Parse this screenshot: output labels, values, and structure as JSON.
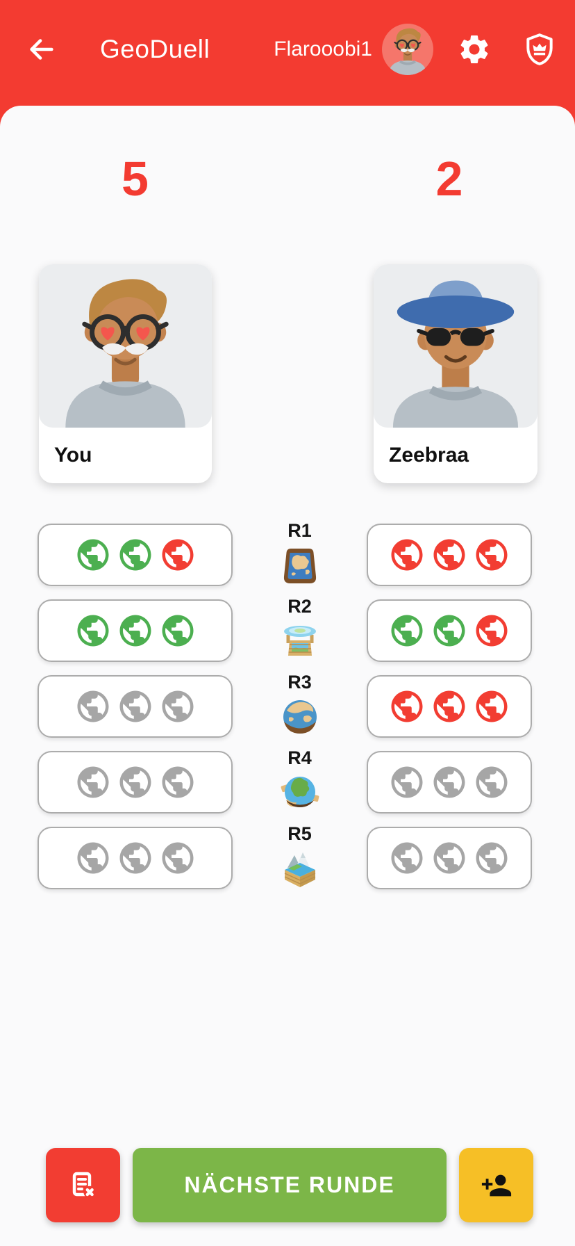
{
  "app": {
    "title": "GeoDuell",
    "username": "Flarooobi1"
  },
  "scoreboard": {
    "left_score": "5",
    "right_score": "2"
  },
  "players": {
    "left_name": "You",
    "right_name": "Zeebraa"
  },
  "rounds": {
    "labels": [
      "R1",
      "R2",
      "R3",
      "R4",
      "R5"
    ],
    "icons": [
      "europe-map-tray",
      "flat-earth-crate",
      "hemisphere-globe",
      "continent-globe",
      "landscape-box"
    ],
    "left_results": [
      [
        "correct",
        "correct",
        "wrong"
      ],
      [
        "correct",
        "correct",
        "correct"
      ],
      [
        "pending",
        "pending",
        "pending"
      ],
      [
        "pending",
        "pending",
        "pending"
      ],
      [
        "pending",
        "pending",
        "pending"
      ]
    ],
    "right_results": [
      [
        "wrong",
        "wrong",
        "wrong"
      ],
      [
        "correct",
        "correct",
        "wrong"
      ],
      [
        "wrong",
        "wrong",
        "wrong"
      ],
      [
        "pending",
        "pending",
        "pending"
      ],
      [
        "pending",
        "pending",
        "pending"
      ]
    ]
  },
  "footer": {
    "next_round_label": "NÄCHSTE RUNDE"
  },
  "colors": {
    "primary_red": "#F33B31",
    "correct": "#4CAF50",
    "wrong": "#F23D32",
    "pending": "#A6A6A6",
    "next_round_green": "#7CB648",
    "invite_yellow": "#F6BF26",
    "header_avatar_bg": "#F5766B"
  }
}
